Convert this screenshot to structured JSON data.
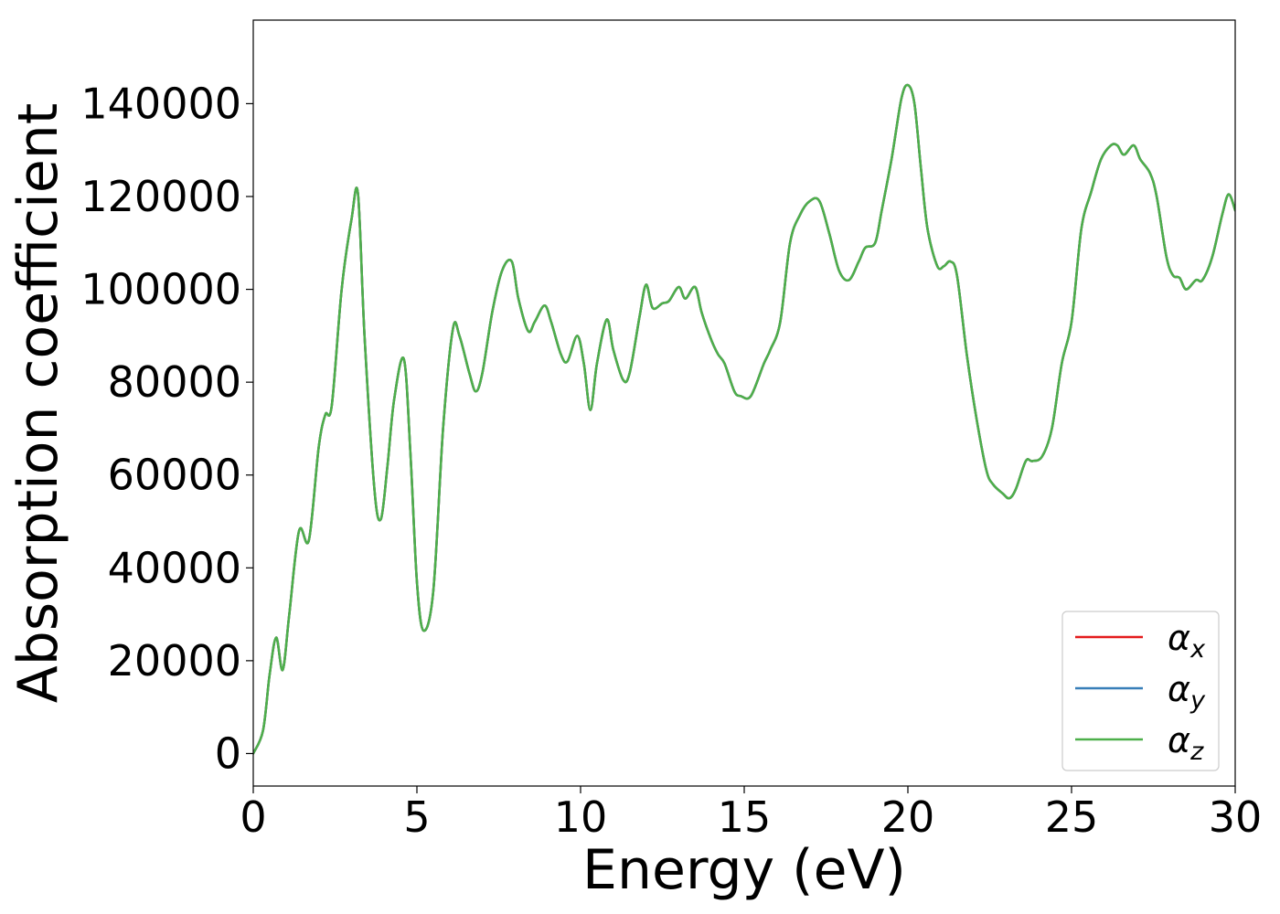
{
  "chart_data": {
    "type": "line",
    "xlabel": "Energy (eV)",
    "ylabel": "Absorption coefficient",
    "xlim": [
      0,
      30
    ],
    "ylim": [
      -7000,
      158000
    ],
    "xticks": [
      0,
      5,
      10,
      15,
      20,
      25,
      30
    ],
    "xtick_labels": [
      "0",
      "5",
      "10",
      "15",
      "20",
      "25",
      "30"
    ],
    "yticks": [
      0,
      20000,
      40000,
      60000,
      80000,
      100000,
      120000,
      140000
    ],
    "ytick_labels": [
      "0",
      "20000",
      "40000",
      "60000",
      "80000",
      "100000",
      "120000",
      "140000"
    ],
    "grid": false,
    "legend_position": "lower-right",
    "x": [
      0,
      0.3,
      0.5,
      0.7,
      0.9,
      1.1,
      1.4,
      1.7,
      2.0,
      2.2,
      2.4,
      2.7,
      3.0,
      3.2,
      3.4,
      3.7,
      3.9,
      4.1,
      4.3,
      4.6,
      4.8,
      5.0,
      5.2,
      5.5,
      5.8,
      6.1,
      6.3,
      6.6,
      6.8,
      7.0,
      7.3,
      7.6,
      7.9,
      8.1,
      8.4,
      8.6,
      8.9,
      9.1,
      9.4,
      9.6,
      9.9,
      10.1,
      10.3,
      10.5,
      10.8,
      11.0,
      11.3,
      11.5,
      11.8,
      12.0,
      12.2,
      12.5,
      12.7,
      13.0,
      13.2,
      13.5,
      13.7,
      14.0,
      14.2,
      14.4,
      14.7,
      14.9,
      15.2,
      15.6,
      15.8,
      16.1,
      16.4,
      16.7,
      17.0,
      17.3,
      17.6,
      17.9,
      18.2,
      18.5,
      18.7,
      19.0,
      19.2,
      19.5,
      19.8,
      20.0,
      20.2,
      20.4,
      20.6,
      20.9,
      21.1,
      21.3,
      21.5,
      21.8,
      22.1,
      22.4,
      22.6,
      22.9,
      23.1,
      23.3,
      23.6,
      23.8,
      24.1,
      24.4,
      24.7,
      25.0,
      25.3,
      25.6,
      25.9,
      26.2,
      26.4,
      26.6,
      26.9,
      27.1,
      27.4,
      27.6,
      27.9,
      28.1,
      28.3,
      28.5,
      28.8,
      29.0,
      29.3,
      29.6,
      29.8,
      30.0
    ],
    "series": [
      {
        "name": "αx",
        "label_base": "α",
        "label_sub": "x",
        "color": "#e41a1c",
        "values": [
          0,
          5000,
          17000,
          25000,
          18000,
          30000,
          48000,
          46000,
          66000,
          73000,
          75000,
          100000,
          115000,
          120500,
          90000,
          57000,
          50500,
          62000,
          76000,
          85000,
          65000,
          37000,
          26500,
          35000,
          70000,
          91500,
          90000,
          82000,
          78000,
          82000,
          95000,
          104000,
          106000,
          98000,
          91000,
          93000,
          96500,
          93000,
          86000,
          84500,
          90000,
          84000,
          74000,
          84000,
          93500,
          87000,
          80500,
          82000,
          94000,
          101000,
          96000,
          97000,
          97500,
          100500,
          98000,
          100500,
          95000,
          89000,
          86000,
          84000,
          78000,
          77000,
          77000,
          84000,
          87000,
          93000,
          110000,
          116000,
          119000,
          119000,
          112000,
          104000,
          102000,
          106000,
          109000,
          110000,
          117000,
          128000,
          141000,
          144000,
          140000,
          126000,
          113000,
          105000,
          105000,
          106000,
          103000,
          86000,
          72000,
          61000,
          58000,
          56000,
          55000,
          57000,
          63000,
          63000,
          64000,
          70000,
          84000,
          93000,
          113000,
          121000,
          128000,
          131000,
          131000,
          129000,
          131000,
          128000,
          125000,
          120000,
          107000,
          103000,
          102500,
          100000,
          102000,
          102000,
          107000,
          116000,
          120500,
          117000
        ]
      },
      {
        "name": "αy",
        "label_base": "α",
        "label_sub": "y",
        "color": "#377eb8",
        "values": [
          0,
          5000,
          17000,
          25000,
          18000,
          30000,
          48000,
          46000,
          66000,
          73000,
          75000,
          100000,
          115000,
          120500,
          90000,
          57000,
          50500,
          62000,
          76000,
          85000,
          65000,
          37000,
          26500,
          35000,
          70000,
          91500,
          90000,
          82000,
          78000,
          82000,
          95000,
          104000,
          106000,
          98000,
          91000,
          93000,
          96500,
          93000,
          86000,
          84500,
          90000,
          84000,
          74000,
          84000,
          93500,
          87000,
          80500,
          82000,
          94000,
          101000,
          96000,
          97000,
          97500,
          100500,
          98000,
          100500,
          95000,
          89000,
          86000,
          84000,
          78000,
          77000,
          77000,
          84000,
          87000,
          93000,
          110000,
          116000,
          119000,
          119000,
          112000,
          104000,
          102000,
          106000,
          109000,
          110000,
          117000,
          128000,
          141000,
          144000,
          140000,
          126000,
          113000,
          105000,
          105000,
          106000,
          103000,
          86000,
          72000,
          61000,
          58000,
          56000,
          55000,
          57000,
          63000,
          63000,
          64000,
          70000,
          84000,
          93000,
          113000,
          121000,
          128000,
          131000,
          131000,
          129000,
          131000,
          128000,
          125000,
          120000,
          107000,
          103000,
          102500,
          100000,
          102000,
          102000,
          107000,
          116000,
          120500,
          117000
        ]
      },
      {
        "name": "αz",
        "label_base": "α",
        "label_sub": "z",
        "color": "#4daf4a",
        "values": [
          0,
          5000,
          17000,
          25000,
          18000,
          30000,
          48000,
          46000,
          66000,
          73000,
          75000,
          100000,
          115000,
          120500,
          90000,
          57000,
          50500,
          62000,
          76000,
          85000,
          65000,
          37000,
          26500,
          35000,
          70000,
          91500,
          90000,
          82000,
          78000,
          82000,
          95000,
          104000,
          106000,
          98000,
          91000,
          93000,
          96500,
          93000,
          86000,
          84500,
          90000,
          84000,
          74000,
          84000,
          93500,
          87000,
          80500,
          82000,
          94000,
          101000,
          96000,
          97000,
          97500,
          100500,
          98000,
          100500,
          95000,
          89000,
          86000,
          84000,
          78000,
          77000,
          77000,
          84000,
          87000,
          93000,
          110000,
          116000,
          119000,
          119000,
          112000,
          104000,
          102000,
          106000,
          109000,
          110000,
          117000,
          128000,
          141000,
          144000,
          140000,
          126000,
          113000,
          105000,
          105000,
          106000,
          103000,
          86000,
          72000,
          61000,
          58000,
          56000,
          55000,
          57000,
          63000,
          63000,
          64000,
          70000,
          84000,
          93000,
          113000,
          121000,
          128000,
          131000,
          131000,
          129000,
          131000,
          128000,
          125000,
          120000,
          107000,
          103000,
          102500,
          100000,
          102000,
          102000,
          107000,
          116000,
          120500,
          117000
        ]
      }
    ]
  }
}
